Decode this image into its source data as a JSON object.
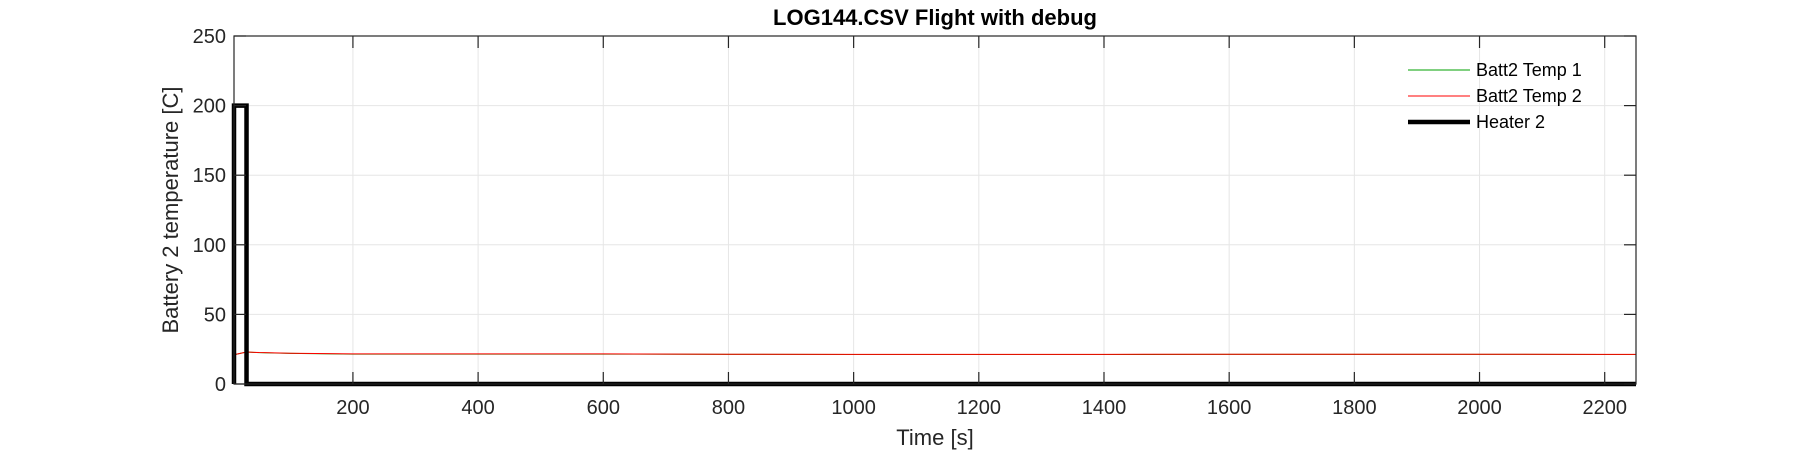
{
  "chart_data": {
    "type": "line",
    "title": "LOG144.CSV  Flight with debug",
    "xlabel": "Time [s]",
    "ylabel": "Battery 2 temperature [C]",
    "xlim": [
      10,
      2250
    ],
    "ylim": [
      0,
      250
    ],
    "xticks": [
      200,
      400,
      600,
      800,
      1000,
      1200,
      1400,
      1600,
      1800,
      2000,
      2200
    ],
    "yticks": [
      0,
      50,
      100,
      150,
      200,
      250
    ],
    "grid": true,
    "legend_position": "top-right",
    "series": [
      {
        "name": "Batt2 Temp 1",
        "color": "#00a000",
        "width": 1,
        "x": [
          10,
          20,
          30,
          50,
          100,
          200,
          400,
          600,
          800,
          1000,
          1200,
          1400,
          1600,
          1800,
          2000,
          2200,
          2250
        ],
        "y": [
          21,
          22,
          23,
          22.5,
          22,
          21.5,
          21.5,
          21.5,
          21.3,
          21.2,
          21.2,
          21.2,
          21.3,
          21.3,
          21.3,
          21.2,
          21.2
        ]
      },
      {
        "name": "Batt2 Temp 2",
        "color": "#ff0000",
        "width": 1,
        "x": [
          10,
          20,
          30,
          50,
          100,
          200,
          400,
          600,
          800,
          1000,
          1200,
          1400,
          1600,
          1800,
          2000,
          2200,
          2250
        ],
        "y": [
          21,
          22,
          23,
          22.6,
          22.1,
          21.6,
          21.6,
          21.6,
          21.4,
          21.3,
          21.3,
          21.3,
          21.4,
          21.4,
          21.4,
          21.3,
          21.3
        ]
      },
      {
        "name": "Heater 2",
        "color": "#000000",
        "width": 4.5,
        "x": [
          10,
          10,
          30,
          30,
          2250
        ],
        "y": [
          0,
          200,
          200,
          0,
          0
        ]
      }
    ]
  }
}
